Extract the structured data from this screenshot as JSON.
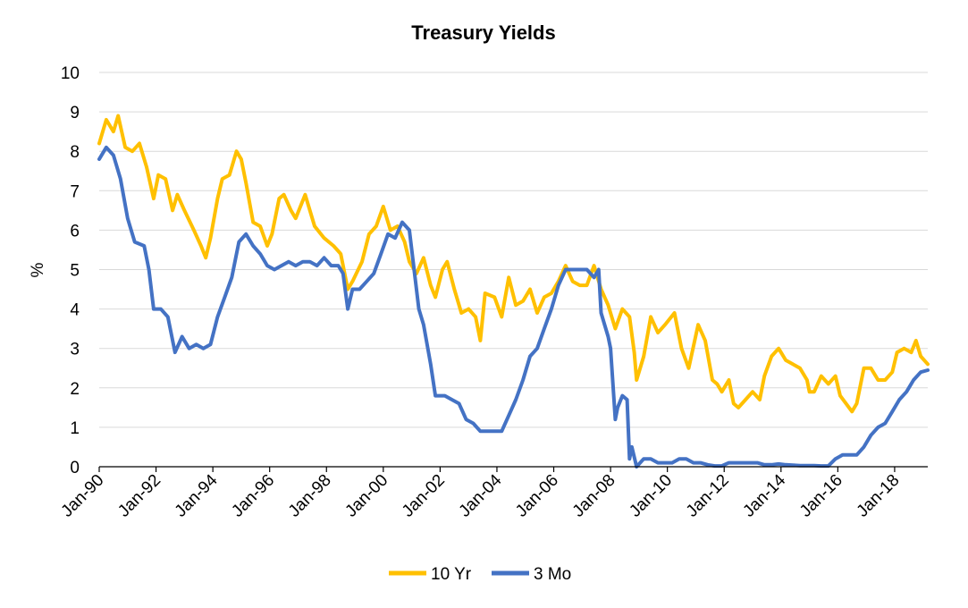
{
  "chart_data": {
    "type": "line",
    "title": "Treasury Yields",
    "xlabel": "",
    "ylabel": "%",
    "ylim": [
      0,
      10
    ],
    "yticks": [
      "0",
      "1",
      "2",
      "3",
      "4",
      "5",
      "6",
      "7",
      "8",
      "9",
      "10"
    ],
    "xlim": [
      "1990-01",
      "2019-03"
    ],
    "xticks": [
      "Jan-90",
      "Jan-92",
      "Jan-94",
      "Jan-96",
      "Jan-98",
      "Jan-00",
      "Jan-02",
      "Jan-04",
      "Jan-06",
      "Jan-08",
      "Jan-10",
      "Jan-12",
      "Jan-14",
      "Jan-16",
      "Jan-18"
    ],
    "grid": true,
    "legend_position": "bottom",
    "series": [
      {
        "name": "10 Yr",
        "color": "#FFC000",
        "points": [
          [
            "1990-01",
            8.2
          ],
          [
            "1990-04",
            8.8
          ],
          [
            "1990-07",
            8.5
          ],
          [
            "1990-09",
            8.9
          ],
          [
            "1990-12",
            8.1
          ],
          [
            "1991-03",
            8.0
          ],
          [
            "1991-06",
            8.2
          ],
          [
            "1991-09",
            7.6
          ],
          [
            "1991-12",
            6.8
          ],
          [
            "1992-02",
            7.4
          ],
          [
            "1992-05",
            7.3
          ],
          [
            "1992-08",
            6.5
          ],
          [
            "1992-10",
            6.9
          ],
          [
            "1993-01",
            6.5
          ],
          [
            "1993-05",
            6.0
          ],
          [
            "1993-08",
            5.6
          ],
          [
            "1993-10",
            5.3
          ],
          [
            "1993-12",
            5.8
          ],
          [
            "1994-03",
            6.8
          ],
          [
            "1994-05",
            7.3
          ],
          [
            "1994-08",
            7.4
          ],
          [
            "1994-11",
            8.0
          ],
          [
            "1995-01",
            7.8
          ],
          [
            "1995-03",
            7.2
          ],
          [
            "1995-06",
            6.2
          ],
          [
            "1995-09",
            6.1
          ],
          [
            "1995-12",
            5.6
          ],
          [
            "1996-02",
            5.9
          ],
          [
            "1996-05",
            6.8
          ],
          [
            "1996-07",
            6.9
          ],
          [
            "1996-10",
            6.5
          ],
          [
            "1996-12",
            6.3
          ],
          [
            "1997-04",
            6.9
          ],
          [
            "1997-08",
            6.1
          ],
          [
            "1997-12",
            5.8
          ],
          [
            "1998-04",
            5.6
          ],
          [
            "1998-07",
            5.4
          ],
          [
            "1998-10",
            4.5
          ],
          [
            "1998-12",
            4.7
          ],
          [
            "1999-04",
            5.2
          ],
          [
            "1999-07",
            5.9
          ],
          [
            "1999-10",
            6.1
          ],
          [
            "2000-01",
            6.6
          ],
          [
            "2000-04",
            6.0
          ],
          [
            "2000-07",
            6.1
          ],
          [
            "2000-10",
            5.7
          ],
          [
            "2000-12",
            5.2
          ],
          [
            "2001-03",
            4.9
          ],
          [
            "2001-06",
            5.3
          ],
          [
            "2001-09",
            4.6
          ],
          [
            "2001-11",
            4.3
          ],
          [
            "2002-02",
            5.0
          ],
          [
            "2002-04",
            5.2
          ],
          [
            "2002-07",
            4.5
          ],
          [
            "2002-10",
            3.9
          ],
          [
            "2003-01",
            4.0
          ],
          [
            "2003-04",
            3.8
          ],
          [
            "2003-06",
            3.2
          ],
          [
            "2003-08",
            4.4
          ],
          [
            "2003-12",
            4.3
          ],
          [
            "2004-03",
            3.8
          ],
          [
            "2004-06",
            4.8
          ],
          [
            "2004-09",
            4.1
          ],
          [
            "2004-12",
            4.2
          ],
          [
            "2005-03",
            4.5
          ],
          [
            "2005-06",
            3.9
          ],
          [
            "2005-09",
            4.3
          ],
          [
            "2005-12",
            4.4
          ],
          [
            "2006-03",
            4.7
          ],
          [
            "2006-06",
            5.1
          ],
          [
            "2006-09",
            4.7
          ],
          [
            "2006-12",
            4.6
          ],
          [
            "2007-03",
            4.6
          ],
          [
            "2007-06",
            5.1
          ],
          [
            "2007-09",
            4.5
          ],
          [
            "2007-12",
            4.1
          ],
          [
            "2008-03",
            3.5
          ],
          [
            "2008-06",
            4.0
          ],
          [
            "2008-09",
            3.8
          ],
          [
            "2008-11",
            2.9
          ],
          [
            "2008-12",
            2.2
          ],
          [
            "2009-03",
            2.8
          ],
          [
            "2009-06",
            3.8
          ],
          [
            "2009-09",
            3.4
          ],
          [
            "2009-12",
            3.6
          ],
          [
            "2010-04",
            3.9
          ],
          [
            "2010-07",
            3.0
          ],
          [
            "2010-10",
            2.5
          ],
          [
            "2011-02",
            3.6
          ],
          [
            "2011-05",
            3.2
          ],
          [
            "2011-08",
            2.2
          ],
          [
            "2011-10",
            2.1
          ],
          [
            "2011-12",
            1.9
          ],
          [
            "2012-03",
            2.2
          ],
          [
            "2012-05",
            1.6
          ],
          [
            "2012-07",
            1.5
          ],
          [
            "2012-10",
            1.7
          ],
          [
            "2013-01",
            1.9
          ],
          [
            "2013-04",
            1.7
          ],
          [
            "2013-06",
            2.3
          ],
          [
            "2013-09",
            2.8
          ],
          [
            "2013-12",
            3.0
          ],
          [
            "2014-03",
            2.7
          ],
          [
            "2014-06",
            2.6
          ],
          [
            "2014-09",
            2.5
          ],
          [
            "2014-12",
            2.2
          ],
          [
            "2015-01",
            1.9
          ],
          [
            "2015-03",
            1.9
          ],
          [
            "2015-06",
            2.3
          ],
          [
            "2015-09",
            2.1
          ],
          [
            "2015-12",
            2.3
          ],
          [
            "2016-02",
            1.8
          ],
          [
            "2016-07",
            1.4
          ],
          [
            "2016-09",
            1.6
          ],
          [
            "2016-12",
            2.5
          ],
          [
            "2017-03",
            2.5
          ],
          [
            "2017-06",
            2.2
          ],
          [
            "2017-09",
            2.2
          ],
          [
            "2017-12",
            2.4
          ],
          [
            "2018-02",
            2.9
          ],
          [
            "2018-05",
            3.0
          ],
          [
            "2018-08",
            2.9
          ],
          [
            "2018-10",
            3.2
          ],
          [
            "2018-12",
            2.8
          ],
          [
            "2019-03",
            2.6
          ]
        ]
      },
      {
        "name": "3 Mo",
        "color": "#4472C4",
        "points": [
          [
            "1990-01",
            7.8
          ],
          [
            "1990-04",
            8.1
          ],
          [
            "1990-07",
            7.9
          ],
          [
            "1990-10",
            7.3
          ],
          [
            "1991-01",
            6.3
          ],
          [
            "1991-04",
            5.7
          ],
          [
            "1991-08",
            5.6
          ],
          [
            "1991-10",
            5.0
          ],
          [
            "1991-12",
            4.0
          ],
          [
            "1992-03",
            4.0
          ],
          [
            "1992-06",
            3.8
          ],
          [
            "1992-09",
            2.9
          ],
          [
            "1992-12",
            3.3
          ],
          [
            "1993-03",
            3.0
          ],
          [
            "1993-06",
            3.1
          ],
          [
            "1993-09",
            3.0
          ],
          [
            "1993-12",
            3.1
          ],
          [
            "1994-03",
            3.8
          ],
          [
            "1994-06",
            4.3
          ],
          [
            "1994-09",
            4.8
          ],
          [
            "1994-12",
            5.7
          ],
          [
            "1995-03",
            5.9
          ],
          [
            "1995-06",
            5.6
          ],
          [
            "1995-09",
            5.4
          ],
          [
            "1995-12",
            5.1
          ],
          [
            "1996-03",
            5.0
          ],
          [
            "1996-06",
            5.1
          ],
          [
            "1996-09",
            5.2
          ],
          [
            "1996-12",
            5.1
          ],
          [
            "1997-03",
            5.2
          ],
          [
            "1997-06",
            5.2
          ],
          [
            "1997-09",
            5.1
          ],
          [
            "1997-12",
            5.3
          ],
          [
            "1998-03",
            5.1
          ],
          [
            "1998-06",
            5.1
          ],
          [
            "1998-08",
            4.9
          ],
          [
            "1998-10",
            4.0
          ],
          [
            "1998-12",
            4.5
          ],
          [
            "1999-03",
            4.5
          ],
          [
            "1999-06",
            4.7
          ],
          [
            "1999-09",
            4.9
          ],
          [
            "1999-12",
            5.4
          ],
          [
            "2000-03",
            5.9
          ],
          [
            "2000-06",
            5.8
          ],
          [
            "2000-09",
            6.2
          ],
          [
            "2000-12",
            6.0
          ],
          [
            "2001-02",
            5.0
          ],
          [
            "2001-04",
            4.0
          ],
          [
            "2001-06",
            3.6
          ],
          [
            "2001-09",
            2.6
          ],
          [
            "2001-11",
            1.8
          ],
          [
            "2002-03",
            1.8
          ],
          [
            "2002-06",
            1.7
          ],
          [
            "2002-09",
            1.6
          ],
          [
            "2002-12",
            1.2
          ],
          [
            "2003-03",
            1.1
          ],
          [
            "2003-06",
            0.9
          ],
          [
            "2003-09",
            0.9
          ],
          [
            "2003-12",
            0.9
          ],
          [
            "2004-03",
            0.9
          ],
          [
            "2004-06",
            1.3
          ],
          [
            "2004-09",
            1.7
          ],
          [
            "2004-12",
            2.2
          ],
          [
            "2005-03",
            2.8
          ],
          [
            "2005-06",
            3.0
          ],
          [
            "2005-09",
            3.5
          ],
          [
            "2005-12",
            4.0
          ],
          [
            "2006-03",
            4.6
          ],
          [
            "2006-06",
            5.0
          ],
          [
            "2006-09",
            5.0
          ],
          [
            "2006-12",
            5.0
          ],
          [
            "2007-03",
            5.0
          ],
          [
            "2007-06",
            4.8
          ],
          [
            "2007-08",
            5.0
          ],
          [
            "2007-09",
            3.9
          ],
          [
            "2007-12",
            3.3
          ],
          [
            "2008-01",
            3.0
          ],
          [
            "2008-03",
            1.2
          ],
          [
            "2008-04",
            1.5
          ],
          [
            "2008-06",
            1.8
          ],
          [
            "2008-08",
            1.7
          ],
          [
            "2008-09",
            0.2
          ],
          [
            "2008-10",
            0.5
          ],
          [
            "2008-12",
            0.0
          ],
          [
            "2009-03",
            0.2
          ],
          [
            "2009-06",
            0.2
          ],
          [
            "2009-09",
            0.1
          ],
          [
            "2009-12",
            0.1
          ],
          [
            "2010-03",
            0.1
          ],
          [
            "2010-06",
            0.2
          ],
          [
            "2010-09",
            0.2
          ],
          [
            "2010-12",
            0.1
          ],
          [
            "2011-03",
            0.1
          ],
          [
            "2011-06",
            0.05
          ],
          [
            "2011-09",
            0.02
          ],
          [
            "2011-12",
            0.02
          ],
          [
            "2012-03",
            0.1
          ],
          [
            "2012-06",
            0.1
          ],
          [
            "2012-09",
            0.1
          ],
          [
            "2012-12",
            0.1
          ],
          [
            "2013-03",
            0.1
          ],
          [
            "2013-06",
            0.05
          ],
          [
            "2013-09",
            0.05
          ],
          [
            "2013-12",
            0.07
          ],
          [
            "2014-03",
            0.05
          ],
          [
            "2014-06",
            0.04
          ],
          [
            "2014-09",
            0.03
          ],
          [
            "2014-12",
            0.03
          ],
          [
            "2015-03",
            0.03
          ],
          [
            "2015-06",
            0.02
          ],
          [
            "2015-09",
            0.02
          ],
          [
            "2015-12",
            0.2
          ],
          [
            "2016-03",
            0.3
          ],
          [
            "2016-06",
            0.3
          ],
          [
            "2016-09",
            0.3
          ],
          [
            "2016-12",
            0.5
          ],
          [
            "2017-03",
            0.8
          ],
          [
            "2017-06",
            1.0
          ],
          [
            "2017-09",
            1.1
          ],
          [
            "2017-12",
            1.4
          ],
          [
            "2018-03",
            1.7
          ],
          [
            "2018-06",
            1.9
          ],
          [
            "2018-09",
            2.2
          ],
          [
            "2018-12",
            2.4
          ],
          [
            "2019-03",
            2.45
          ]
        ]
      }
    ]
  }
}
